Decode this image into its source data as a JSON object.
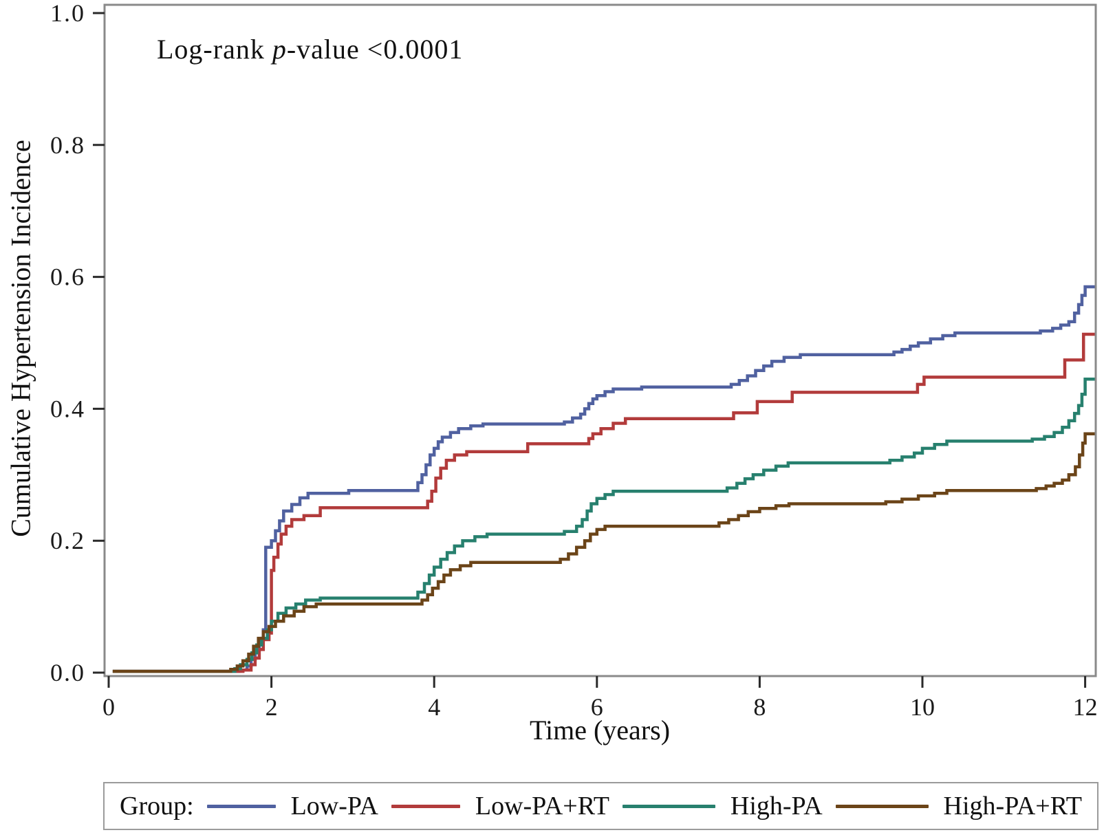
{
  "annotation": {
    "pre": "Log-rank ",
    "italic": "p",
    "post": "-value <0.0001"
  },
  "chart_data": {
    "type": "line",
    "subtype": "step-after",
    "title": "",
    "xlabel": "Time (years)",
    "ylabel": "Cumulative Hypertension Incidence",
    "annotation_text": "Log-rank p-value <0.0001",
    "xlim": [
      0,
      12
    ],
    "ylim": [
      0.0,
      1.0
    ],
    "grid": false,
    "legend_position": "bottom",
    "legend_title": "Group:",
    "xticks": [
      "0",
      "2",
      "4",
      "6",
      "8",
      "10",
      "12"
    ],
    "yticks": [
      "0.0",
      "0.2",
      "0.4",
      "0.6",
      "0.8",
      "1.0"
    ],
    "frame_color": "#8a8a8a",
    "tick_color": "#2a2a2a",
    "series": [
      {
        "name": "Low-PA",
        "color": "#5061a0",
        "points": [
          [
            0.05,
            0.002
          ],
          [
            1.6,
            0.004
          ],
          [
            1.7,
            0.01
          ],
          [
            1.75,
            0.02
          ],
          [
            1.8,
            0.035
          ],
          [
            1.85,
            0.05
          ],
          [
            1.9,
            0.065
          ],
          [
            1.93,
            0.19
          ],
          [
            2.0,
            0.2
          ],
          [
            2.05,
            0.215
          ],
          [
            2.1,
            0.23
          ],
          [
            2.15,
            0.245
          ],
          [
            2.25,
            0.255
          ],
          [
            2.35,
            0.265
          ],
          [
            2.45,
            0.272
          ],
          [
            2.95,
            0.276
          ],
          [
            3.8,
            0.288
          ],
          [
            3.85,
            0.3
          ],
          [
            3.9,
            0.315
          ],
          [
            3.95,
            0.33
          ],
          [
            4.0,
            0.34
          ],
          [
            4.05,
            0.35
          ],
          [
            4.1,
            0.357
          ],
          [
            4.2,
            0.364
          ],
          [
            4.3,
            0.37
          ],
          [
            4.45,
            0.374
          ],
          [
            4.6,
            0.377
          ],
          [
            5.6,
            0.38
          ],
          [
            5.7,
            0.386
          ],
          [
            5.8,
            0.392
          ],
          [
            5.85,
            0.4
          ],
          [
            5.9,
            0.408
          ],
          [
            5.95,
            0.415
          ],
          [
            6.0,
            0.42
          ],
          [
            6.1,
            0.426
          ],
          [
            6.2,
            0.43
          ],
          [
            6.55,
            0.433
          ],
          [
            7.65,
            0.437
          ],
          [
            7.75,
            0.443
          ],
          [
            7.85,
            0.45
          ],
          [
            7.95,
            0.458
          ],
          [
            8.05,
            0.465
          ],
          [
            8.15,
            0.472
          ],
          [
            8.3,
            0.478
          ],
          [
            8.5,
            0.482
          ],
          [
            9.65,
            0.486
          ],
          [
            9.75,
            0.49
          ],
          [
            9.85,
            0.495
          ],
          [
            9.95,
            0.5
          ],
          [
            10.1,
            0.506
          ],
          [
            10.25,
            0.511
          ],
          [
            10.4,
            0.515
          ],
          [
            11.45,
            0.518
          ],
          [
            11.6,
            0.522
          ],
          [
            11.7,
            0.527
          ],
          [
            11.8,
            0.532
          ],
          [
            11.87,
            0.545
          ],
          [
            11.92,
            0.558
          ],
          [
            11.96,
            0.572
          ],
          [
            12.0,
            0.585
          ]
        ]
      },
      {
        "name": "Low-PA+RT",
        "color": "#b23b3b",
        "points": [
          [
            0.05,
            0.002
          ],
          [
            1.65,
            0.004
          ],
          [
            1.75,
            0.012
          ],
          [
            1.8,
            0.022
          ],
          [
            1.85,
            0.035
          ],
          [
            1.9,
            0.05
          ],
          [
            1.97,
            0.06
          ],
          [
            2.0,
            0.155
          ],
          [
            2.03,
            0.175
          ],
          [
            2.08,
            0.195
          ],
          [
            2.12,
            0.21
          ],
          [
            2.18,
            0.222
          ],
          [
            2.25,
            0.232
          ],
          [
            2.4,
            0.238
          ],
          [
            2.6,
            0.25
          ],
          [
            3.92,
            0.26
          ],
          [
            3.97,
            0.275
          ],
          [
            4.02,
            0.295
          ],
          [
            4.08,
            0.31
          ],
          [
            4.15,
            0.322
          ],
          [
            4.25,
            0.33
          ],
          [
            4.4,
            0.335
          ],
          [
            5.15,
            0.347
          ],
          [
            5.9,
            0.355
          ],
          [
            5.95,
            0.362
          ],
          [
            6.05,
            0.37
          ],
          [
            6.2,
            0.378
          ],
          [
            6.35,
            0.385
          ],
          [
            7.68,
            0.394
          ],
          [
            7.97,
            0.411
          ],
          [
            8.4,
            0.425
          ],
          [
            9.94,
            0.437
          ],
          [
            10.02,
            0.448
          ],
          [
            11.75,
            0.474
          ],
          [
            11.98,
            0.513
          ]
        ]
      },
      {
        "name": "High-PA",
        "color": "#27806e",
        "points": [
          [
            0.05,
            0.002
          ],
          [
            1.55,
            0.006
          ],
          [
            1.62,
            0.012
          ],
          [
            1.7,
            0.02
          ],
          [
            1.76,
            0.03
          ],
          [
            1.82,
            0.042
          ],
          [
            1.88,
            0.052
          ],
          [
            1.95,
            0.065
          ],
          [
            2.0,
            0.078
          ],
          [
            2.08,
            0.09
          ],
          [
            2.18,
            0.098
          ],
          [
            2.3,
            0.104
          ],
          [
            2.42,
            0.11
          ],
          [
            2.6,
            0.113
          ],
          [
            3.8,
            0.122
          ],
          [
            3.88,
            0.135
          ],
          [
            3.94,
            0.148
          ],
          [
            4.0,
            0.16
          ],
          [
            4.08,
            0.172
          ],
          [
            4.16,
            0.182
          ],
          [
            4.25,
            0.192
          ],
          [
            4.35,
            0.2
          ],
          [
            4.5,
            0.206
          ],
          [
            4.65,
            0.21
          ],
          [
            5.6,
            0.214
          ],
          [
            5.75,
            0.222
          ],
          [
            5.82,
            0.232
          ],
          [
            5.88,
            0.245
          ],
          [
            5.93,
            0.256
          ],
          [
            6.0,
            0.264
          ],
          [
            6.1,
            0.27
          ],
          [
            6.2,
            0.275
          ],
          [
            7.6,
            0.28
          ],
          [
            7.72,
            0.287
          ],
          [
            7.82,
            0.294
          ],
          [
            7.92,
            0.3
          ],
          [
            8.05,
            0.307
          ],
          [
            8.2,
            0.313
          ],
          [
            8.35,
            0.318
          ],
          [
            9.6,
            0.322
          ],
          [
            9.75,
            0.327
          ],
          [
            9.9,
            0.333
          ],
          [
            10.0,
            0.34
          ],
          [
            10.15,
            0.346
          ],
          [
            10.3,
            0.351
          ],
          [
            11.35,
            0.354
          ],
          [
            11.5,
            0.358
          ],
          [
            11.62,
            0.364
          ],
          [
            11.72,
            0.372
          ],
          [
            11.8,
            0.382
          ],
          [
            11.87,
            0.393
          ],
          [
            11.92,
            0.405
          ],
          [
            11.96,
            0.422
          ],
          [
            12.0,
            0.445
          ]
        ]
      },
      {
        "name": "High-PA+RT",
        "color": "#6b4418",
        "points": [
          [
            0.05,
            0.002
          ],
          [
            1.5,
            0.005
          ],
          [
            1.58,
            0.01
          ],
          [
            1.65,
            0.018
          ],
          [
            1.72,
            0.028
          ],
          [
            1.78,
            0.04
          ],
          [
            1.84,
            0.052
          ],
          [
            1.9,
            0.062
          ],
          [
            1.97,
            0.07
          ],
          [
            2.05,
            0.078
          ],
          [
            2.15,
            0.086
          ],
          [
            2.28,
            0.093
          ],
          [
            2.4,
            0.1
          ],
          [
            2.55,
            0.104
          ],
          [
            3.85,
            0.11
          ],
          [
            3.92,
            0.118
          ],
          [
            3.98,
            0.128
          ],
          [
            4.05,
            0.138
          ],
          [
            4.12,
            0.148
          ],
          [
            4.2,
            0.156
          ],
          [
            4.32,
            0.162
          ],
          [
            4.45,
            0.167
          ],
          [
            5.55,
            0.172
          ],
          [
            5.65,
            0.18
          ],
          [
            5.75,
            0.19
          ],
          [
            5.85,
            0.2
          ],
          [
            5.92,
            0.21
          ],
          [
            6.0,
            0.217
          ],
          [
            6.1,
            0.222
          ],
          [
            7.5,
            0.227
          ],
          [
            7.62,
            0.232
          ],
          [
            7.74,
            0.238
          ],
          [
            7.86,
            0.244
          ],
          [
            8.0,
            0.249
          ],
          [
            8.2,
            0.253
          ],
          [
            8.36,
            0.256
          ],
          [
            9.55,
            0.259
          ],
          [
            9.75,
            0.263
          ],
          [
            9.95,
            0.268
          ],
          [
            10.15,
            0.272
          ],
          [
            10.3,
            0.276
          ],
          [
            11.4,
            0.279
          ],
          [
            11.52,
            0.283
          ],
          [
            11.62,
            0.287
          ],
          [
            11.72,
            0.292
          ],
          [
            11.8,
            0.3
          ],
          [
            11.88,
            0.312
          ],
          [
            11.93,
            0.33
          ],
          [
            11.97,
            0.348
          ],
          [
            12.0,
            0.362
          ]
        ]
      }
    ]
  },
  "legend": {
    "title": "Group:",
    "items": [
      {
        "label": "Low-PA"
      },
      {
        "label": "Low-PA+RT"
      },
      {
        "label": "High-PA"
      },
      {
        "label": "High-PA+RT"
      }
    ]
  }
}
